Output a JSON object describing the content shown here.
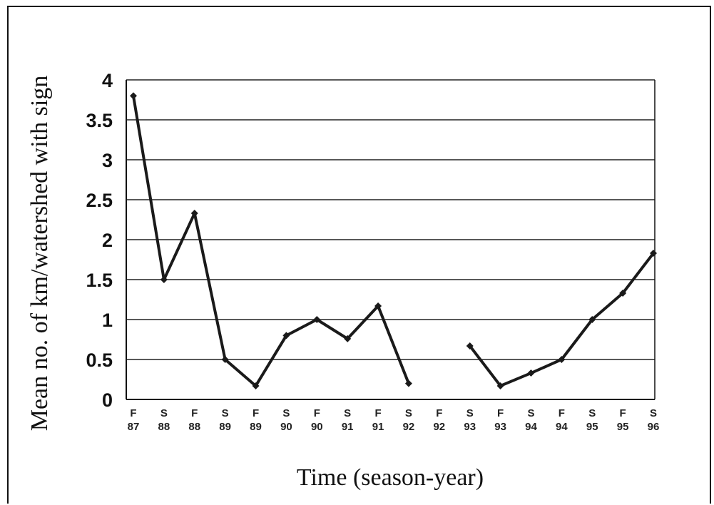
{
  "chart_data": {
    "type": "line",
    "title": "",
    "xlabel": "Time (season-year)",
    "ylabel": "Mean no. of  km/watershed with sign",
    "ylim": [
      0,
      4
    ],
    "yticks": [
      "0",
      "0.5",
      "1",
      "1.5",
      "2",
      "2.5",
      "3",
      "3.5",
      "4"
    ],
    "categories": [
      {
        "season": "F",
        "year": "87"
      },
      {
        "season": "S",
        "year": "88"
      },
      {
        "season": "F",
        "year": "88"
      },
      {
        "season": "S",
        "year": "89"
      },
      {
        "season": "F",
        "year": "89"
      },
      {
        "season": "S",
        "year": "90"
      },
      {
        "season": "F",
        "year": "90"
      },
      {
        "season": "S",
        "year": "91"
      },
      {
        "season": "F",
        "year": "91"
      },
      {
        "season": "S",
        "year": "92"
      },
      {
        "season": "F",
        "year": "92"
      },
      {
        "season": "S",
        "year": "93"
      },
      {
        "season": "F",
        "year": "93"
      },
      {
        "season": "S",
        "year": "94"
      },
      {
        "season": "F",
        "year": "94"
      },
      {
        "season": "S",
        "year": "95"
      },
      {
        "season": "F",
        "year": "95"
      },
      {
        "season": "S",
        "year": "96"
      }
    ],
    "series": [
      {
        "values": [
          3.8,
          1.5,
          2.33,
          0.5,
          0.17,
          0.8,
          1.0,
          0.76,
          1.17,
          0.2,
          null,
          0.67,
          0.17,
          0.33,
          0.5,
          1.0,
          1.33,
          1.83
        ]
      }
    ],
    "grid": true,
    "line_color": "#1a1a1a"
  }
}
